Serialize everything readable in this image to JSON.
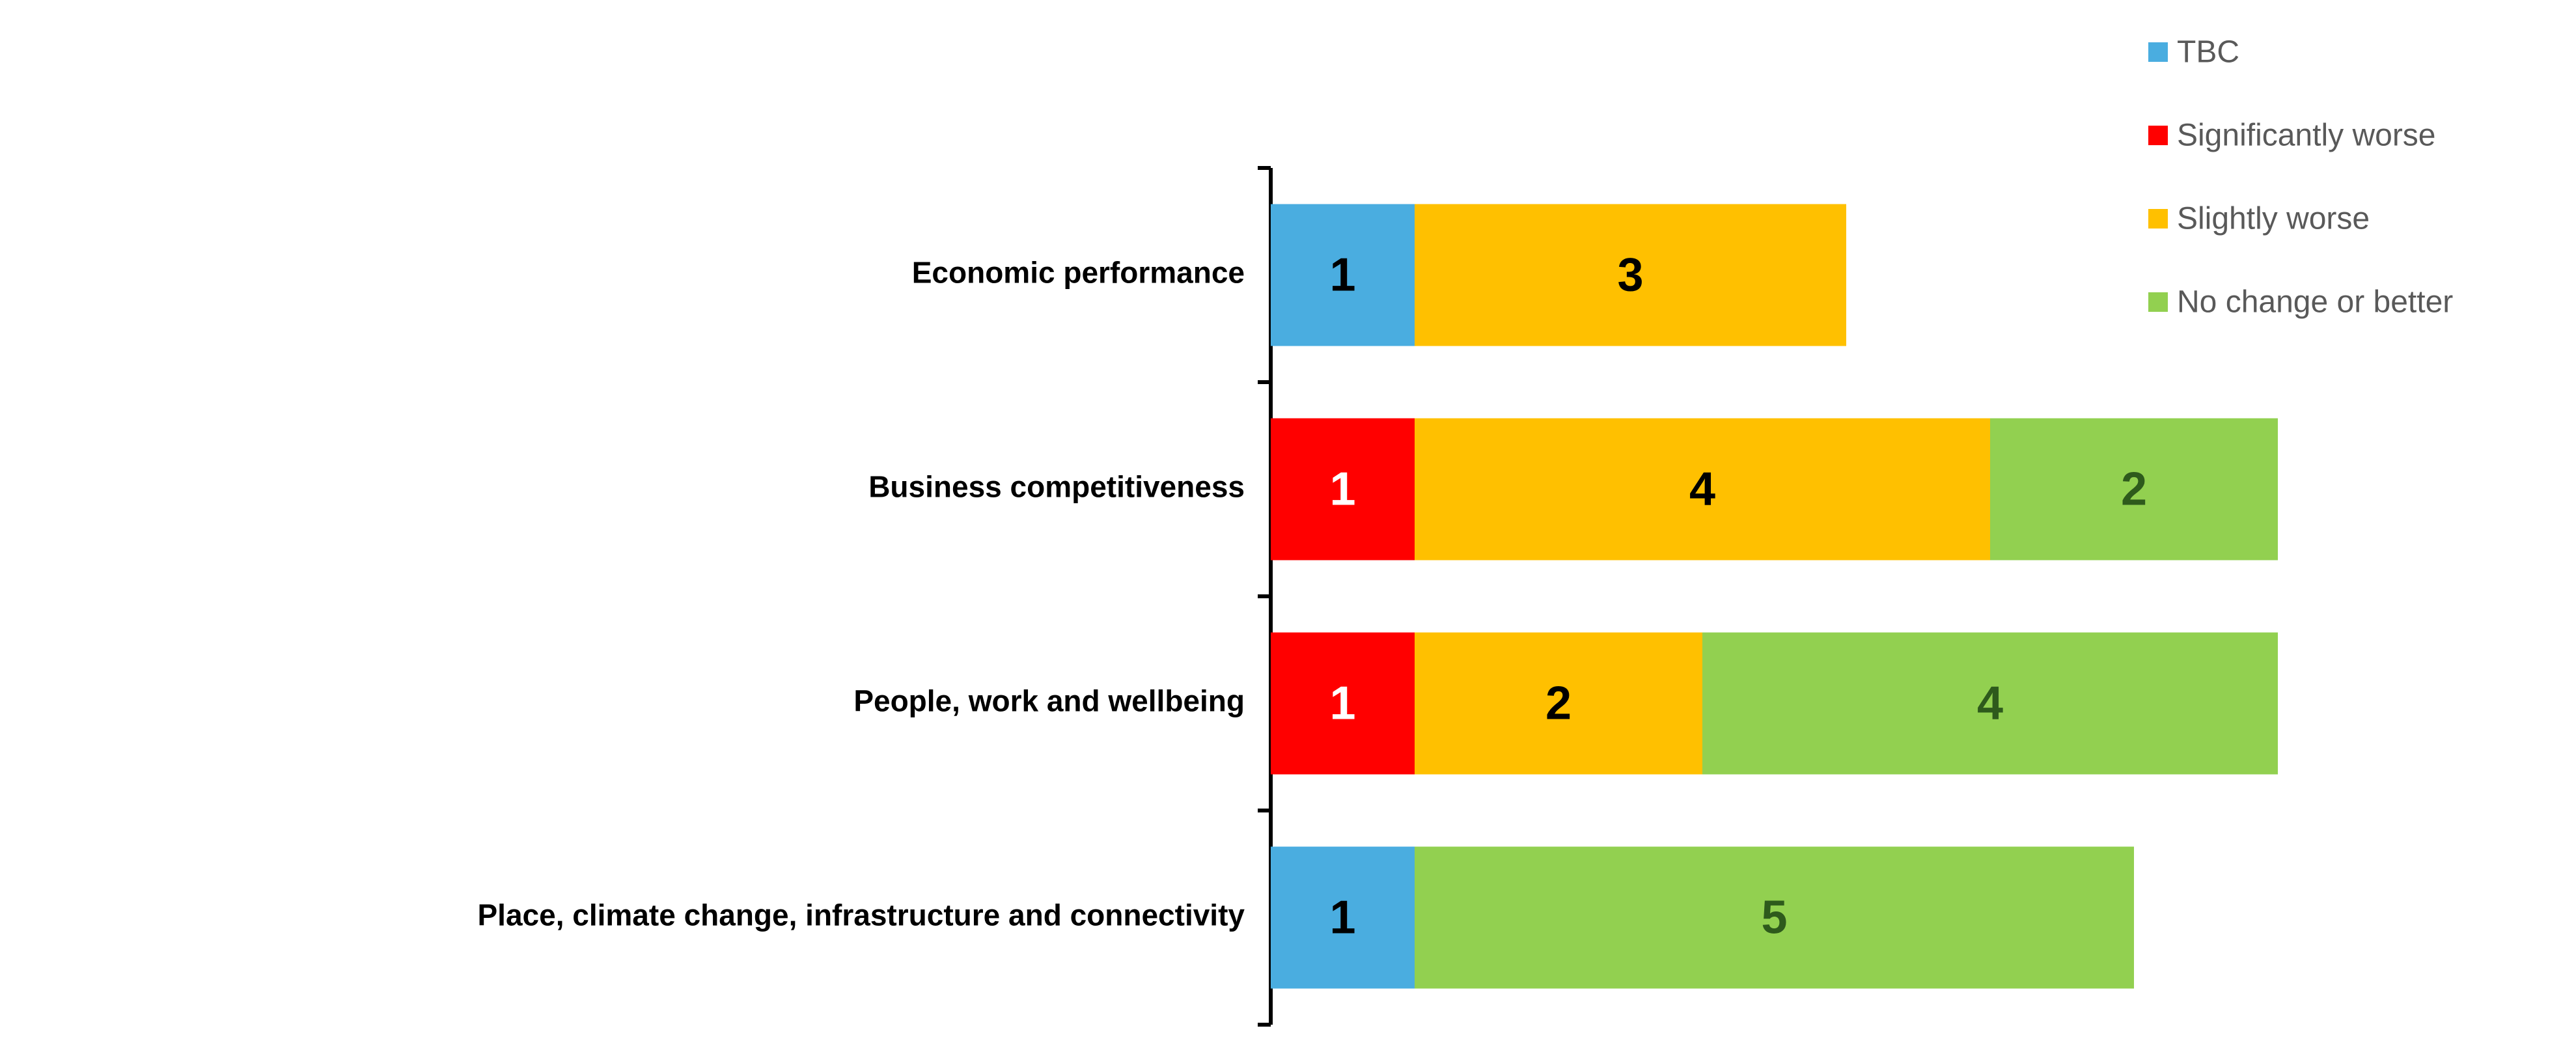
{
  "chart_data": {
    "type": "bar",
    "orientation": "horizontal",
    "stacked": true,
    "categories": [
      "Economic performance",
      "Business competitiveness",
      "People, work and wellbeing",
      "Place, climate change, infrastructure and connectivity"
    ],
    "series": [
      {
        "name": "TBC",
        "color": "#4AADE0",
        "label_color": "#000000",
        "values": [
          1,
          0,
          0,
          1
        ]
      },
      {
        "name": "Significantly worse",
        "color": "#FF0000",
        "label_color": "#FFFFFF",
        "values": [
          0,
          1,
          1,
          0
        ]
      },
      {
        "name": "Slightly worse",
        "color": "#FFC000",
        "label_color": "#000000",
        "values": [
          3,
          4,
          2,
          0
        ]
      },
      {
        "name": "No change or better",
        "color": "#92D050",
        "label_color": "#2E5A1C",
        "values": [
          0,
          2,
          4,
          5
        ]
      }
    ],
    "xlim": [
      0,
      8
    ],
    "legend": {
      "position": "top-right",
      "order": [
        "TBC",
        "Significantly worse",
        "Slightly worse",
        "No change or better"
      ]
    },
    "grid": false,
    "data_labels": true,
    "title": "",
    "xlabel": "",
    "ylabel": ""
  }
}
